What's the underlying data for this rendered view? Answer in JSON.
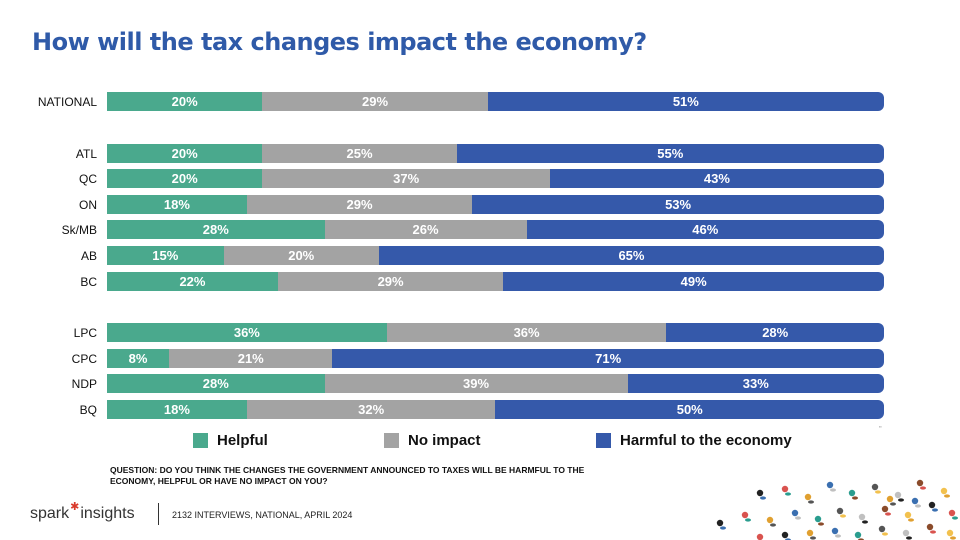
{
  "title": "How will the tax changes impact the economy?",
  "colors": {
    "helpful": "#4aa98d",
    "no_impact": "#a3a3a3",
    "harmful": "#3559aa",
    "title": "#2f5aa8",
    "logo_star": "#d93a2b"
  },
  "chart_data": {
    "type": "bar",
    "orientation": "horizontal-stacked-100",
    "title": "How will the tax changes impact the economy?",
    "categories": [
      "NATIONAL",
      "ATL",
      "QC",
      "ON",
      "Sk/MB",
      "AB",
      "BC",
      "LPC",
      "CPC",
      "NDP",
      "BQ"
    ],
    "groups": [
      [
        "NATIONAL"
      ],
      [
        "ATL",
        "QC",
        "ON",
        "Sk/MB",
        "AB",
        "BC"
      ],
      [
        "LPC",
        "CPC",
        "NDP",
        "BQ"
      ]
    ],
    "series": [
      {
        "name": "Helpful",
        "color": "#4aa98d",
        "values": [
          20,
          20,
          20,
          18,
          28,
          15,
          22,
          36,
          8,
          28,
          18
        ]
      },
      {
        "name": "No impact",
        "color": "#a3a3a3",
        "values": [
          29,
          25,
          37,
          29,
          26,
          20,
          29,
          36,
          21,
          39,
          32
        ]
      },
      {
        "name": "Harmful to the economy",
        "color": "#3559aa",
        "values": [
          51,
          55,
          43,
          53,
          46,
          65,
          49,
          28,
          71,
          33,
          50
        ]
      }
    ],
    "value_suffix": "%",
    "legend": "bottom"
  },
  "question": "QUESTION: DO YOU THINK THE CHANGES THE GOVERNMENT ANNOUNCED TO TAXES WILL BE HARMFUL TO THE ECONOMY, HELPFUL OR HAVE NO IMPACT ON YOU?",
  "footer": {
    "logo_left": "spark",
    "logo_right": "insights",
    "note": "2132 INTERVIEWS, NATIONAL, APRIL 2024"
  },
  "icons": {
    "logo_star": "star-icon",
    "crowd": "crowd-illustration"
  }
}
